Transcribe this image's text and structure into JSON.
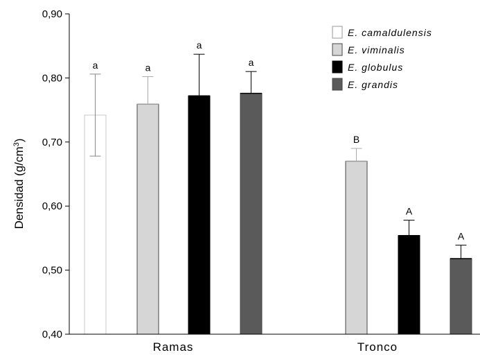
{
  "chart_data": {
    "type": "bar",
    "ylabel_main": "Densidad (g/cm",
    "ylabel_sup": "3",
    "ylabel_close": ")",
    "ylim": [
      0.4,
      0.9
    ],
    "yticks": [
      "0,40",
      "0,50",
      "0,60",
      "0,70",
      "0,80",
      "0,90"
    ],
    "categories": [
      "Ramas",
      "Tronco"
    ],
    "legend_position": "top-right",
    "series": [
      {
        "name": "E. camaldulensis",
        "color": "#ffffff",
        "values": [
          0.742,
          null
        ],
        "errors": [
          0.064,
          null
        ],
        "labels": [
          "a",
          ""
        ]
      },
      {
        "name": "E. viminalis",
        "color": "#d6d6d6",
        "values": [
          0.759,
          0.67
        ],
        "errors": [
          0.043,
          0.02
        ],
        "labels": [
          "a",
          "B"
        ]
      },
      {
        "name": "E. globulus",
        "color": "#000000",
        "values": [
          0.772,
          0.554
        ],
        "errors": [
          0.065,
          0.024
        ],
        "labels": [
          "a",
          "A"
        ]
      },
      {
        "name": "E. grandis",
        "color": "#5a5a5a",
        "values": [
          0.776,
          0.518
        ],
        "errors": [
          0.034,
          0.021
        ],
        "labels": [
          "a",
          "A"
        ]
      }
    ]
  }
}
